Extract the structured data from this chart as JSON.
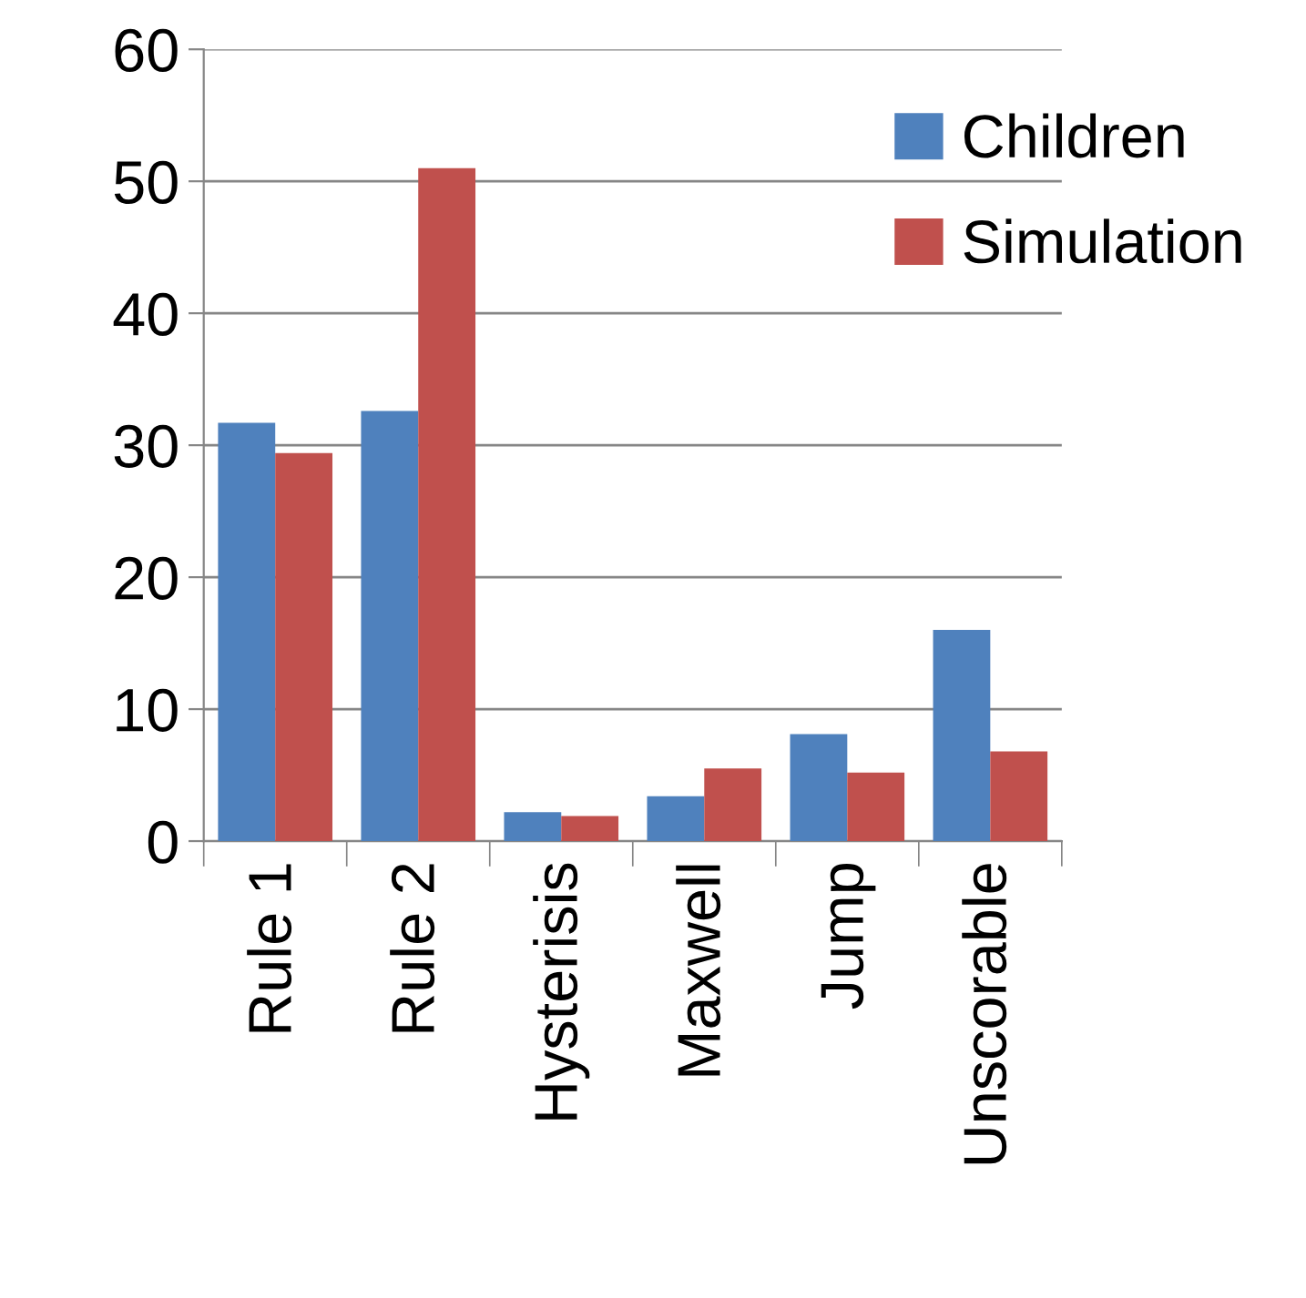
{
  "chart_data": {
    "type": "bar",
    "categories": [
      "Rule 1",
      "Rule 2",
      "Hysterisis",
      "Maxwell",
      "Jump",
      "Unscorable"
    ],
    "series": [
      {
        "name": "Children",
        "color": "#4f81bd",
        "values": [
          31.7,
          32.6,
          2.2,
          3.4,
          8.1,
          16.0
        ]
      },
      {
        "name": "Simulation",
        "color": "#c0504d",
        "values": [
          29.4,
          51.0,
          1.9,
          5.5,
          5.2,
          6.8
        ]
      }
    ],
    "ylim": [
      0,
      60
    ],
    "yticks": [
      0,
      10,
      20,
      30,
      40,
      50,
      60
    ],
    "grid": "y",
    "legend": "top right"
  }
}
